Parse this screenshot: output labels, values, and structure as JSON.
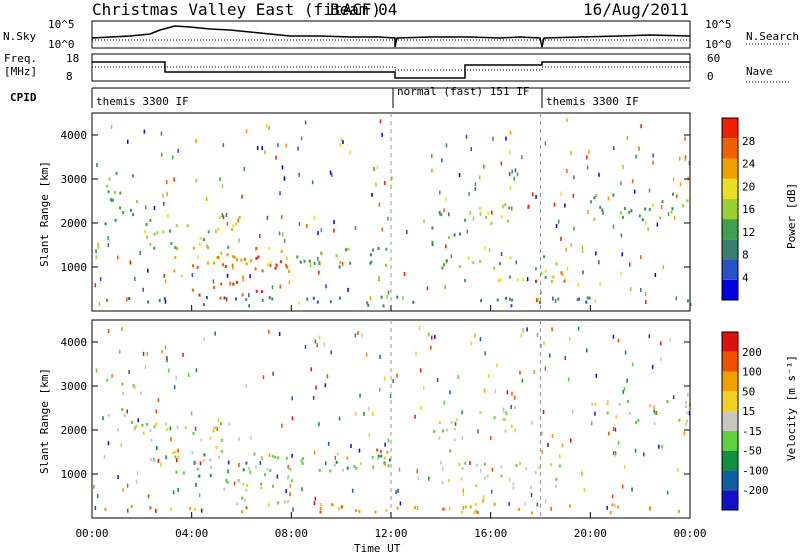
{
  "header": {
    "radar": "Christmas Valley East (fitACF)",
    "beam": "Beam 04",
    "date": "16/Aug/2011"
  },
  "noise_panel": {
    "left_label": "N.Sky",
    "left_ticks": [
      "10^5",
      "10^0"
    ],
    "right_ticks": [
      "10^5",
      "10^0"
    ],
    "right_label": "N.Search"
  },
  "freq_panel": {
    "left_label_1": "Freq.",
    "left_label_2": "[MHz]",
    "left_ticks": [
      "18",
      "8"
    ],
    "right_ticks": [
      "60",
      "0"
    ],
    "right_label": "Nave"
  },
  "cpid_panel": {
    "label": "CPID",
    "segments": [
      {
        "start_hour": 0,
        "end_hour": 12,
        "label": "themis 3300 IF"
      },
      {
        "start_hour": 12,
        "end_hour": 18,
        "label": "normal (fast) 151 IF"
      },
      {
        "start_hour": 18,
        "end_hour": 24,
        "label": "themis 3300 IF"
      }
    ]
  },
  "colorbars": {
    "power": {
      "label": "Power [dB]",
      "ticks": [
        "28",
        "24",
        "20",
        "16",
        "12",
        "8",
        "4"
      ],
      "colors": [
        "#0000e0",
        "#2850c8",
        "#3a8070",
        "#40a050",
        "#9ad030",
        "#e8e020",
        "#f0a000",
        "#f06000",
        "#f02000"
      ]
    },
    "velocity": {
      "label": "Velocity [m s⁻¹]",
      "ticks": [
        "200",
        "100",
        "50",
        "15",
        "-15",
        "-50",
        "-100",
        "-200"
      ],
      "colors": [
        "#1010c8",
        "#1060a0",
        "#109040",
        "#60d040",
        "#c8c8c0",
        "#f0d020",
        "#f0a000",
        "#f05000",
        "#e01010"
      ]
    }
  },
  "chart_data": [
    {
      "type": "heatmap",
      "panel": "power",
      "ylabel": "Slant Range [km]",
      "xlim": [
        0,
        24
      ],
      "ylim": [
        0,
        4500
      ],
      "yticks": [
        "4000",
        "3000",
        "2000",
        "1000"
      ],
      "xticks": [
        "00:00",
        "04:00",
        "08:00",
        "12:00",
        "16:00",
        "20:00",
        "00:00"
      ],
      "xlabel": "Time UT",
      "regions": [
        {
          "t0": 0.5,
          "t1": 2.0,
          "r0": 2000,
          "r1": 3300,
          "level": 3
        },
        {
          "t0": 2.0,
          "t1": 6.0,
          "r0": 1300,
          "r1": 2200,
          "level": 4
        },
        {
          "t0": 3.0,
          "t1": 8.0,
          "r0": 800,
          "r1": 1500,
          "level": 6
        },
        {
          "t0": 5.0,
          "t1": 8.0,
          "r0": 900,
          "r1": 1300,
          "level": 8
        },
        {
          "t0": 4.0,
          "t1": 7.0,
          "r0": 300,
          "r1": 700,
          "level": 8
        },
        {
          "t0": 8.0,
          "t1": 12.0,
          "r0": 900,
          "r1": 1500,
          "level": 3
        },
        {
          "t0": 13.5,
          "t1": 15.0,
          "r0": 1500,
          "r1": 2300,
          "level": 3
        },
        {
          "t0": 15.5,
          "t1": 17.0,
          "r0": 2000,
          "r1": 2600,
          "level": 4
        },
        {
          "t0": 14.0,
          "t1": 19.0,
          "r0": 700,
          "r1": 1300,
          "level": 4
        },
        {
          "t0": 17.5,
          "t1": 19.0,
          "r0": 700,
          "r1": 1000,
          "level": 7
        },
        {
          "t0": 19.5,
          "t1": 24.0,
          "r0": 2100,
          "r1": 2700,
          "level": 3
        },
        {
          "t0": 0.0,
          "t1": 24.0,
          "r0": 150,
          "r1": 350,
          "level": 2
        }
      ]
    },
    {
      "type": "heatmap",
      "panel": "velocity",
      "ylabel": "Slant Range [km]",
      "xlim": [
        0,
        24
      ],
      "ylim": [
        0,
        4500
      ],
      "yticks": [
        "4000",
        "3000",
        "2000",
        "1000"
      ],
      "xticks": [
        "00:00",
        "04:00",
        "08:00",
        "12:00",
        "16:00",
        "20:00",
        "00:00"
      ],
      "xlabel": "Time UT",
      "regions": [
        {
          "t0": 0.5,
          "t1": 2.0,
          "r0": 2000,
          "r1": 3300,
          "level": 4
        },
        {
          "t0": 2.0,
          "t1": 6.0,
          "r0": 1300,
          "r1": 2200,
          "level": 4
        },
        {
          "t0": 3.0,
          "t1": 8.0,
          "r0": 800,
          "r1": 1500,
          "level": 3
        },
        {
          "t0": 5.0,
          "t1": 8.0,
          "r0": 300,
          "r1": 900,
          "level": 4
        },
        {
          "t0": 8.0,
          "t1": 12.0,
          "r0": 900,
          "r1": 1500,
          "level": 3
        },
        {
          "t0": 10.0,
          "t1": 12.0,
          "r0": 1200,
          "r1": 1600,
          "level": 6
        },
        {
          "t0": 13.5,
          "t1": 15.0,
          "r0": 1500,
          "r1": 2300,
          "level": 4
        },
        {
          "t0": 15.5,
          "t1": 17.0,
          "r0": 2000,
          "r1": 2600,
          "level": 4
        },
        {
          "t0": 14.0,
          "t1": 19.0,
          "r0": 700,
          "r1": 1300,
          "level": 4
        },
        {
          "t0": 19.5,
          "t1": 24.0,
          "r0": 2100,
          "r1": 2700,
          "level": 4
        },
        {
          "t0": 0.0,
          "t1": 24.0,
          "r0": 150,
          "r1": 350,
          "level": 6
        }
      ]
    }
  ]
}
